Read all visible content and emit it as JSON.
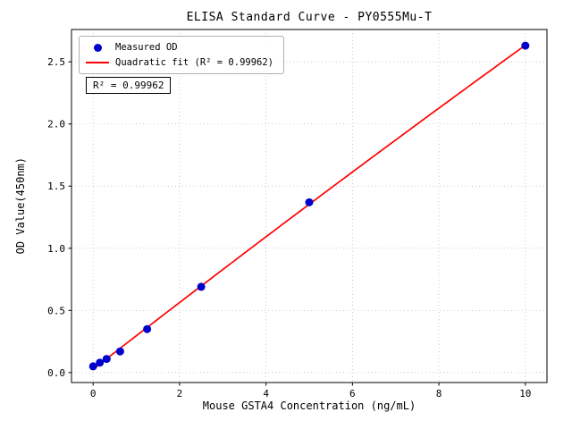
{
  "chart_data": {
    "type": "scatter",
    "title": "ELISA Standard Curve - PY0555Mu-T",
    "xlabel": "Mouse GSTA4 Concentration (ng/mL)",
    "ylabel": "OD Value(450nm)",
    "annotation": "R² = 0.99962",
    "legend_labels": {
      "measured": "Measured OD",
      "fit": "Quadratic fit (R² = 0.99962)"
    },
    "legend_position": "upper left",
    "grid": true,
    "xlim": [
      -0.5,
      10.5
    ],
    "ylim": [
      -0.08,
      2.76
    ],
    "xticks": [
      0,
      2,
      4,
      6,
      8,
      10
    ],
    "yticks": [
      0,
      0.5,
      1,
      1.5,
      2,
      2.5
    ],
    "series": [
      {
        "name": "Measured OD",
        "type": "scatter",
        "color": "#0000cd",
        "x": [
          0,
          0.156,
          0.3125,
          0.625,
          1.25,
          2.5,
          5,
          10
        ],
        "y": [
          0.05,
          0.08,
          0.11,
          0.17,
          0.35,
          0.69,
          1.37,
          2.63
        ]
      },
      {
        "name": "Quadratic fit",
        "type": "line",
        "color": "#ff0000",
        "fit": "quadratic",
        "r_squared": 0.99962
      }
    ]
  }
}
